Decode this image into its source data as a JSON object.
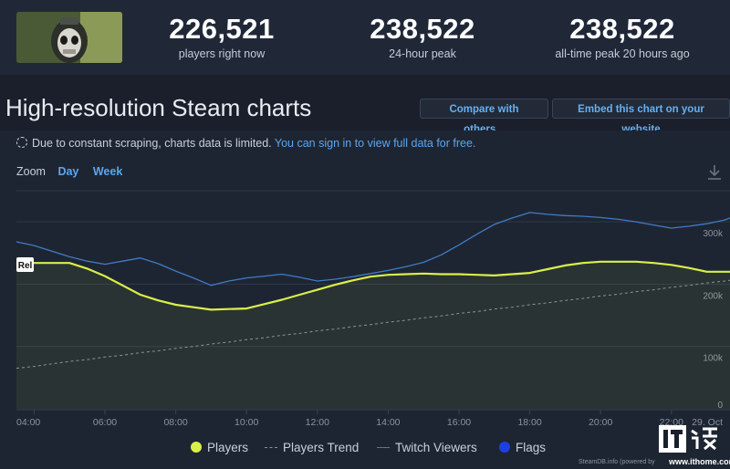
{
  "stats": [
    {
      "value": "226,521",
      "label": "players right now"
    },
    {
      "value": "238,522",
      "label": "24-hour peak"
    },
    {
      "value": "238,522",
      "label": "all-time peak 20 hours ago"
    }
  ],
  "page_title": "High-resolution Steam charts",
  "buttons": {
    "compare": "Compare with others...",
    "embed": "Embed this chart on your website"
  },
  "notice": {
    "text": "Due to constant scraping, charts data is limited.",
    "link": "You can sign in to view full data for free."
  },
  "zoom": {
    "label": "Zoom",
    "day": "Day",
    "week": "Week"
  },
  "legend": {
    "players": "Players",
    "trend": "Players Trend",
    "twitch": "Twitch Viewers",
    "flags": "Flags"
  },
  "footer": {
    "credit": "SteamDB.info (powered by"
  },
  "watermark": {
    "url": "www.ithome.com"
  },
  "colors": {
    "players": "#d9f04a",
    "twitch": "#3f7bc6",
    "trend": "#8b929c",
    "flags": "#1f3fe0",
    "accent_link": "#5aa6f0"
  },
  "icons": {
    "notice": "spinner-icon",
    "download": "download-icon",
    "thumbnail": "game-thumbnail"
  },
  "chart_data": {
    "type": "line",
    "x": [
      "03:30",
      "04:00",
      "04:30",
      "05:00",
      "05:30",
      "06:00",
      "06:30",
      "07:00",
      "07:30",
      "08:00",
      "08:30",
      "09:00",
      "09:30",
      "10:00",
      "10:30",
      "11:00",
      "11:30",
      "12:00",
      "12:30",
      "13:00",
      "13:30",
      "14:00",
      "14:30",
      "15:00",
      "15:30",
      "16:00",
      "16:30",
      "17:00",
      "17:30",
      "18:00",
      "18:30",
      "19:00",
      "19:30",
      "20:00",
      "20:30",
      "21:00",
      "21:30",
      "22:00",
      "22:30",
      "23:00",
      "23:30",
      "00:00"
    ],
    "x_ticks": [
      "04:00",
      "06:00",
      "08:00",
      "10:00",
      "12:00",
      "14:00",
      "16:00",
      "18:00",
      "20:00",
      "22:00",
      "29. Oct"
    ],
    "series": [
      {
        "name": "Players",
        "values": [
          234000,
          234000,
          234000,
          234000,
          225000,
          213000,
          198000,
          183000,
          174000,
          167000,
          163000,
          159000,
          160000,
          161000,
          168000,
          175000,
          183000,
          191000,
          199000,
          206000,
          212000,
          215000,
          216000,
          217000,
          216000,
          216000,
          215000,
          214000,
          216000,
          218000,
          224000,
          230000,
          234000,
          236000,
          236000,
          236000,
          234000,
          231000,
          226000,
          220000,
          220000,
          220000
        ]
      },
      {
        "name": "Twitch Viewers",
        "values": [
          268000,
          262000,
          253000,
          244000,
          237000,
          232000,
          237000,
          242000,
          233000,
          221000,
          210000,
          198000,
          205000,
          210000,
          213000,
          216000,
          211000,
          205000,
          208000,
          212000,
          217000,
          222000,
          228000,
          235000,
          247000,
          263000,
          280000,
          296000,
          306000,
          315000,
          312000,
          310000,
          309000,
          307000,
          304000,
          300000,
          295000,
          290000,
          293000,
          297000,
          303000,
          313000
        ]
      },
      {
        "name": "Players Trend",
        "values": [
          65000,
          68000,
          72000,
          76000,
          79000,
          83000,
          86000,
          90000,
          93000,
          97000,
          100000,
          104000,
          107000,
          111000,
          114000,
          118000,
          121000,
          125000,
          128000,
          132000,
          135000,
          139000,
          142000,
          146000,
          149000,
          153000,
          156000,
          160000,
          163000,
          167000,
          170000,
          174000,
          177000,
          181000,
          184000,
          188000,
          191000,
          195000,
          198000,
          202000,
          205000,
          209000
        ]
      }
    ],
    "ylim": [
      0,
      350000
    ],
    "y_ticks": [
      {
        "value": 0,
        "label": "0"
      },
      {
        "value": 100000,
        "label": "100k"
      },
      {
        "value": 200000,
        "label": "200k"
      },
      {
        "value": 300000,
        "label": "300k"
      }
    ],
    "flags": [
      {
        "x": "03:30",
        "label": "Rel"
      }
    ],
    "grid": true,
    "legend_position": "bottom"
  }
}
